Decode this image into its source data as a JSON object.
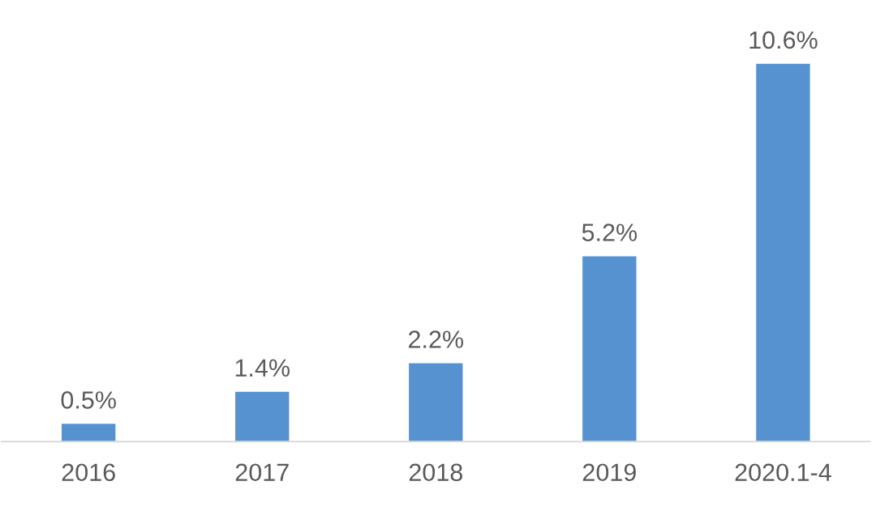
{
  "chart_data": {
    "type": "bar",
    "categories": [
      "2016",
      "2017",
      "2018",
      "2019",
      "2020.1-4"
    ],
    "values": [
      0.5,
      1.4,
      2.2,
      5.2,
      10.6
    ],
    "value_labels": [
      "0.5%",
      "1.4%",
      "2.2%",
      "5.2%",
      "10.6%"
    ],
    "color": "#5592cf",
    "tick_labels": "x"
  }
}
